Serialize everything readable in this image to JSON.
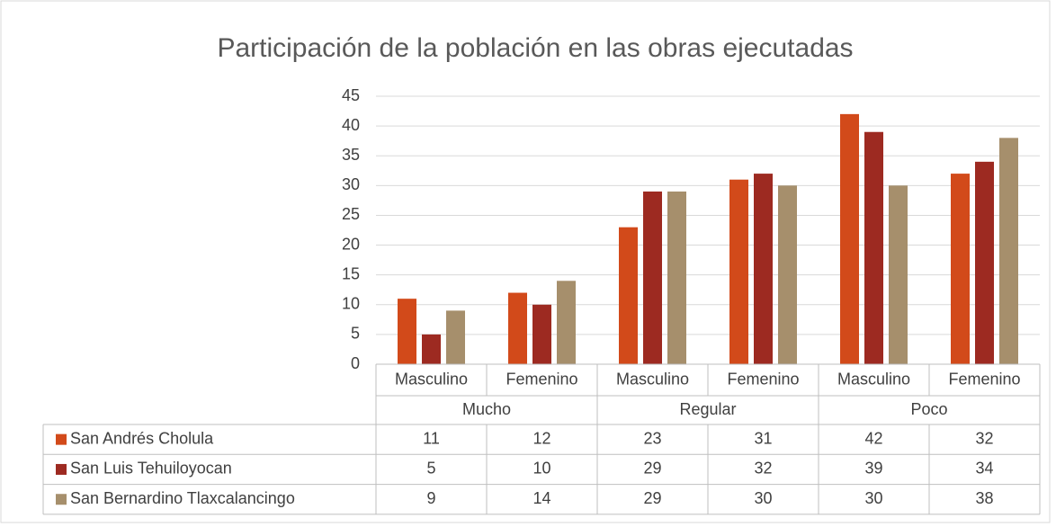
{
  "chart_data": {
    "type": "bar",
    "title": "Participación de la población en las obras ejecutadas",
    "categories": [
      "Masculino",
      "Femenino",
      "Masculino",
      "Femenino",
      "Masculino",
      "Femenino"
    ],
    "groups": [
      "Mucho",
      "Regular",
      "Poco"
    ],
    "series": [
      {
        "name": "San Andrés Cholula",
        "color": "#d24a1a",
        "values": [
          11,
          12,
          23,
          31,
          42,
          32
        ]
      },
      {
        "name": "San Luis Tehuiloyocan",
        "color": "#9d2a21",
        "values": [
          5,
          10,
          29,
          32,
          39,
          34
        ]
      },
      {
        "name": "San Bernardino Tlaxcalancingo",
        "color": "#a68f6c",
        "values": [
          9,
          14,
          29,
          30,
          30,
          38
        ]
      }
    ],
    "ylim": [
      0,
      45
    ],
    "yticks": [
      0,
      5,
      10,
      15,
      20,
      25,
      30,
      35,
      40,
      45
    ],
    "grid": true,
    "data_table": true
  }
}
